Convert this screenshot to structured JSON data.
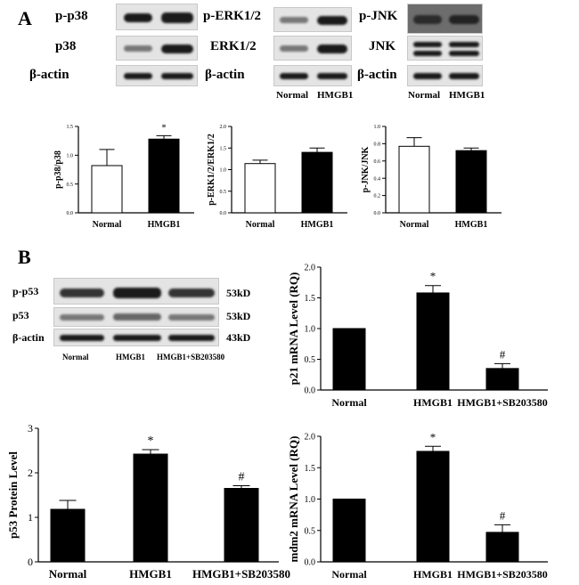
{
  "panels": {
    "a": "A",
    "b": "B"
  },
  "western_a": {
    "p38_block": {
      "rows": [
        "p-p38",
        "p38",
        "β-actin"
      ]
    },
    "erk_block": {
      "rows": [
        "p-ERK1/2",
        "ERK1/2",
        "β-actin"
      ],
      "xlabels": [
        "Normal",
        "HMGB1"
      ]
    },
    "jnk_block": {
      "rows": [
        "p-JNK",
        "JNK",
        "β-actin"
      ],
      "xlabels": [
        "Normal",
        "HMGB1"
      ]
    }
  },
  "western_b": {
    "rows": [
      "p-p53",
      "p53",
      "β-actin"
    ],
    "sizes": [
      "53kD",
      "53kD",
      "43kD"
    ],
    "xlabels": [
      "Normal",
      "HMGB1",
      "HMGB1+SB203580"
    ]
  },
  "chart_data": [
    {
      "id": "p38",
      "type": "bar",
      "categories": [
        "Normal",
        "HMGB1"
      ],
      "values": [
        0.82,
        1.28
      ],
      "errors": [
        0.28,
        0.06
      ],
      "fills": [
        "#ffffff",
        "#000000"
      ],
      "ylabel": "p-p38/p38",
      "ylim": [
        0,
        1.5
      ],
      "yticks": [
        "0.0",
        "0.5",
        "1.0",
        "1.5"
      ],
      "annotations": [
        "",
        "*"
      ]
    },
    {
      "id": "erk",
      "type": "bar",
      "categories": [
        "Normal",
        "HMGB1"
      ],
      "values": [
        1.14,
        1.4
      ],
      "errors": [
        0.08,
        0.1
      ],
      "fills": [
        "#ffffff",
        "#000000"
      ],
      "ylabel": "p-ERK1/2/ERK1/2",
      "ylim": [
        0,
        2.0
      ],
      "yticks": [
        "0.0",
        "0.5",
        "1.0",
        "1.5",
        "2.0"
      ],
      "annotations": [
        "",
        ""
      ]
    },
    {
      "id": "jnk",
      "type": "bar",
      "categories": [
        "Normal",
        "HMGB1"
      ],
      "values": [
        0.77,
        0.72
      ],
      "errors": [
        0.1,
        0.03
      ],
      "fills": [
        "#ffffff",
        "#000000"
      ],
      "ylabel": "p-JNK/JNK",
      "ylim": [
        0,
        1.0
      ],
      "yticks": [
        "0.0",
        "0.2",
        "0.4",
        "0.6",
        "0.8",
        "1.0"
      ],
      "annotations": [
        "",
        ""
      ]
    },
    {
      "id": "p21",
      "type": "bar",
      "categories": [
        "Normal",
        "HMGB1",
        "HMGB1+SB203580"
      ],
      "values": [
        1.0,
        1.58,
        0.35
      ],
      "errors": [
        0.0,
        0.12,
        0.08
      ],
      "fills": [
        "#000000",
        "#000000",
        "#000000"
      ],
      "ylabel": "p21 mRNA Level (RQ)",
      "ylim": [
        0,
        2.0
      ],
      "yticks": [
        "0.0",
        "0.5",
        "1.0",
        "1.5",
        "2.0"
      ],
      "annotations": [
        "",
        "*",
        "#"
      ]
    },
    {
      "id": "p53",
      "type": "bar",
      "categories": [
        "Normal",
        "HMGB1",
        "HMGB1+SB203580"
      ],
      "values": [
        1.18,
        2.42,
        1.65
      ],
      "errors": [
        0.2,
        0.1,
        0.06
      ],
      "fills": [
        "#000000",
        "#000000",
        "#000000"
      ],
      "ylabel": "p53 Protein Level",
      "ylim": [
        0,
        3
      ],
      "yticks": [
        "0",
        "1",
        "2",
        "3"
      ],
      "annotations": [
        "",
        "*",
        "#"
      ]
    },
    {
      "id": "mdm2",
      "type": "bar",
      "categories": [
        "Normal",
        "HMGB1",
        "HMGB1+SB203580"
      ],
      "values": [
        1.0,
        1.76,
        0.47
      ],
      "errors": [
        0.0,
        0.08,
        0.12
      ],
      "fills": [
        "#000000",
        "#000000",
        "#000000"
      ],
      "ylabel": "mdm2 mRNA Level (RQ)",
      "ylim": [
        0,
        2.0
      ],
      "yticks": [
        "0.0",
        "0.5",
        "1.0",
        "1.5",
        "2.0"
      ],
      "annotations": [
        "",
        "*",
        "#"
      ]
    }
  ]
}
